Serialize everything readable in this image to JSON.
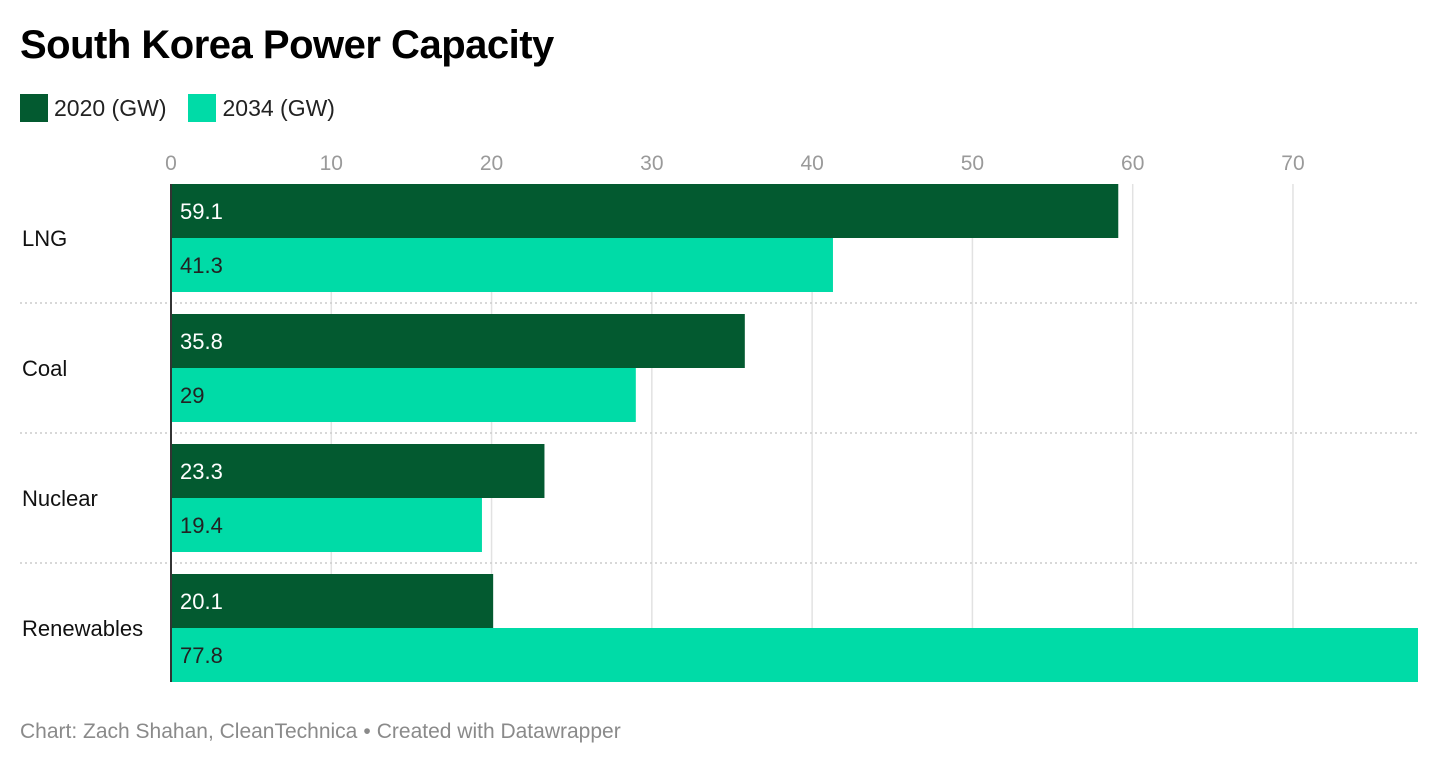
{
  "title": "South Korea Power Capacity",
  "legend": [
    {
      "label": "2020 (GW)",
      "color": "#035a30"
    },
    {
      "label": "2034 (GW)",
      "color": "#00dba7"
    }
  ],
  "chart_data": {
    "type": "bar",
    "orientation": "horizontal",
    "categories": [
      "LNG",
      "Coal",
      "Nuclear",
      "Renewables"
    ],
    "series": [
      {
        "name": "2020 (GW)",
        "color": "#035a30",
        "values": [
          59.1,
          35.8,
          23.3,
          20.1
        ],
        "labels": [
          "59.1",
          "35.8",
          "23.3",
          "20.1"
        ]
      },
      {
        "name": "2034 (GW)",
        "color": "#00dba7",
        "values": [
          41.3,
          29,
          19.4,
          77.8
        ],
        "labels": [
          "41.3",
          "29",
          "19.4",
          "77.8"
        ]
      }
    ],
    "xlim": [
      0,
      77.8
    ],
    "ticks": [
      0,
      10,
      20,
      30,
      40,
      50,
      60,
      70
    ],
    "tick_labels": [
      "0",
      "10",
      "20",
      "30",
      "40",
      "50",
      "60",
      "70"
    ],
    "grid": true,
    "legend_position": "top-left",
    "label_color_dark": "#ffffff",
    "label_color_light": "#222222"
  },
  "footer": {
    "credit": "Chart: Zach Shahan, CleanTechnica",
    "separator": "•",
    "created": "Created with Datawrapper"
  }
}
